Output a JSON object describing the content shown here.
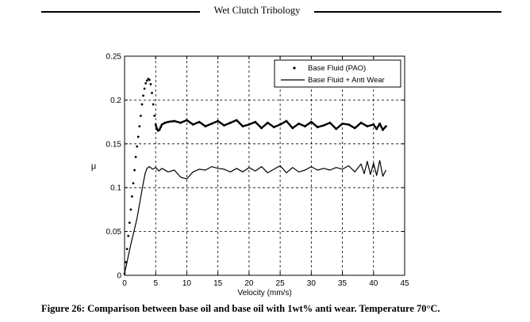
{
  "header": {
    "title": "Wet Clutch Tribology"
  },
  "caption": "Figure 26: Comparison between base oil and base oil with 1wt% anti wear. Temperature 70°C.",
  "chart_data": {
    "type": "line",
    "title": "",
    "xlabel": "Velocity (mm/s)",
    "ylabel": "μ",
    "xlim": [
      0,
      45
    ],
    "ylim": [
      0,
      0.25
    ],
    "xticks": [
      "0",
      "5",
      "10",
      "15",
      "20",
      "25",
      "30",
      "35",
      "40",
      "45"
    ],
    "yticks": [
      "0",
      "0.05",
      "0.1",
      "0.15",
      "0.2",
      "0.25"
    ],
    "grid": true,
    "grid_style": "dashed",
    "legend_position": "top-right",
    "series": [
      {
        "name": "Base Fluid (PAO)",
        "style": "dotted-markers",
        "color": "#000000",
        "x": [
          0.0,
          0.2,
          0.4,
          0.6,
          0.8,
          1.0,
          1.2,
          1.4,
          1.6,
          1.8,
          2.0,
          2.2,
          2.4,
          2.6,
          2.8,
          3.0,
          3.2,
          3.4,
          3.6,
          3.8,
          4.0,
          4.2,
          4.4,
          4.6,
          4.8,
          5.0,
          5.2,
          5.4,
          5.6,
          5.8,
          6.0,
          6.5,
          7.0,
          8,
          9,
          10,
          11,
          12,
          13,
          14,
          15,
          16,
          17,
          18,
          19,
          20,
          21,
          22,
          23,
          24,
          25,
          26,
          27,
          28,
          29,
          30,
          31,
          32,
          33,
          34,
          35,
          36,
          37,
          38,
          39,
          40,
          40.5,
          41,
          41.5,
          42
        ],
        "y": [
          0.002,
          0.015,
          0.03,
          0.045,
          0.06,
          0.075,
          0.09,
          0.105,
          0.12,
          0.135,
          0.147,
          0.158,
          0.17,
          0.182,
          0.195,
          0.205,
          0.213,
          0.219,
          0.222,
          0.224,
          0.223,
          0.218,
          0.208,
          0.195,
          0.182,
          0.172,
          0.167,
          0.165,
          0.166,
          0.169,
          0.172,
          0.174,
          0.175,
          0.176,
          0.174,
          0.177,
          0.172,
          0.175,
          0.17,
          0.173,
          0.176,
          0.171,
          0.174,
          0.177,
          0.17,
          0.172,
          0.175,
          0.168,
          0.174,
          0.169,
          0.172,
          0.176,
          0.168,
          0.173,
          0.17,
          0.175,
          0.169,
          0.171,
          0.174,
          0.167,
          0.173,
          0.172,
          0.168,
          0.174,
          0.17,
          0.172,
          0.167,
          0.173,
          0.166,
          0.17
        ]
      },
      {
        "name": "Base Fluid + Anti Wear",
        "style": "solid",
        "color": "#000000",
        "x": [
          0.0,
          0.3,
          0.6,
          1.0,
          1.5,
          2.0,
          2.5,
          3.0,
          3.3,
          3.6,
          4.0,
          4.5,
          5.0,
          5.5,
          6,
          7,
          8,
          9,
          10,
          11,
          12,
          13,
          14,
          15,
          16,
          17,
          18,
          19,
          20,
          21,
          22,
          23,
          24,
          25,
          26,
          27,
          28,
          29,
          30,
          31,
          32,
          33,
          34,
          35,
          36,
          37,
          38,
          38.5,
          39,
          39.5,
          40,
          40.5,
          41,
          41.5,
          42
        ],
        "y": [
          0.003,
          0.012,
          0.022,
          0.035,
          0.05,
          0.065,
          0.085,
          0.105,
          0.116,
          0.122,
          0.124,
          0.121,
          0.123,
          0.119,
          0.122,
          0.118,
          0.12,
          0.112,
          0.11,
          0.118,
          0.121,
          0.12,
          0.124,
          0.122,
          0.121,
          0.118,
          0.122,
          0.118,
          0.123,
          0.119,
          0.124,
          0.117,
          0.121,
          0.125,
          0.117,
          0.123,
          0.118,
          0.12,
          0.124,
          0.12,
          0.122,
          0.12,
          0.123,
          0.121,
          0.125,
          0.118,
          0.127,
          0.116,
          0.13,
          0.115,
          0.128,
          0.114,
          0.131,
          0.113,
          0.12
        ]
      }
    ]
  }
}
